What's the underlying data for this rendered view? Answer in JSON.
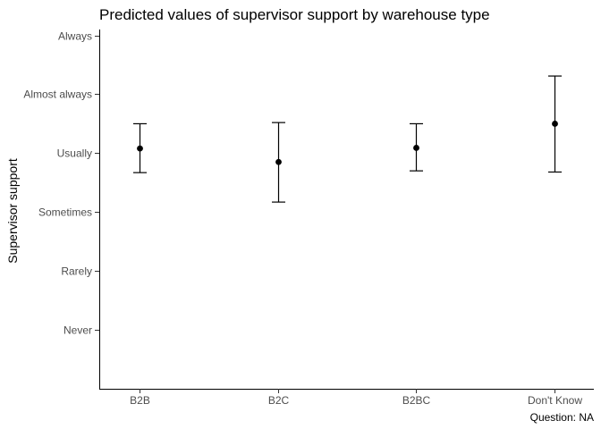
{
  "chart_data": {
    "type": "scatter",
    "title": "Predicted values of supervisor support by warehouse type",
    "ylabel": "Supervisor support",
    "xlabel": "",
    "caption": "Question: NA",
    "categories": [
      "B2B",
      "B2C",
      "B2BC",
      "Don't Know"
    ],
    "y_levels": [
      {
        "value": 1,
        "label": "Never"
      },
      {
        "value": 2,
        "label": "Rarely"
      },
      {
        "value": 3,
        "label": "Sometimes"
      },
      {
        "value": 4,
        "label": "Usually"
      },
      {
        "value": 5,
        "label": "Almost always"
      },
      {
        "value": 6,
        "label": "Always"
      }
    ],
    "ylim": [
      0.0,
      6.1
    ],
    "series": [
      {
        "estimates": [
          4.08,
          3.85,
          4.09,
          4.5
        ],
        "lower": [
          3.67,
          3.17,
          3.7,
          3.68
        ],
        "upper": [
          4.5,
          4.52,
          4.5,
          5.31
        ]
      }
    ],
    "grid": false,
    "legend": "none",
    "point_color": "#000000"
  }
}
